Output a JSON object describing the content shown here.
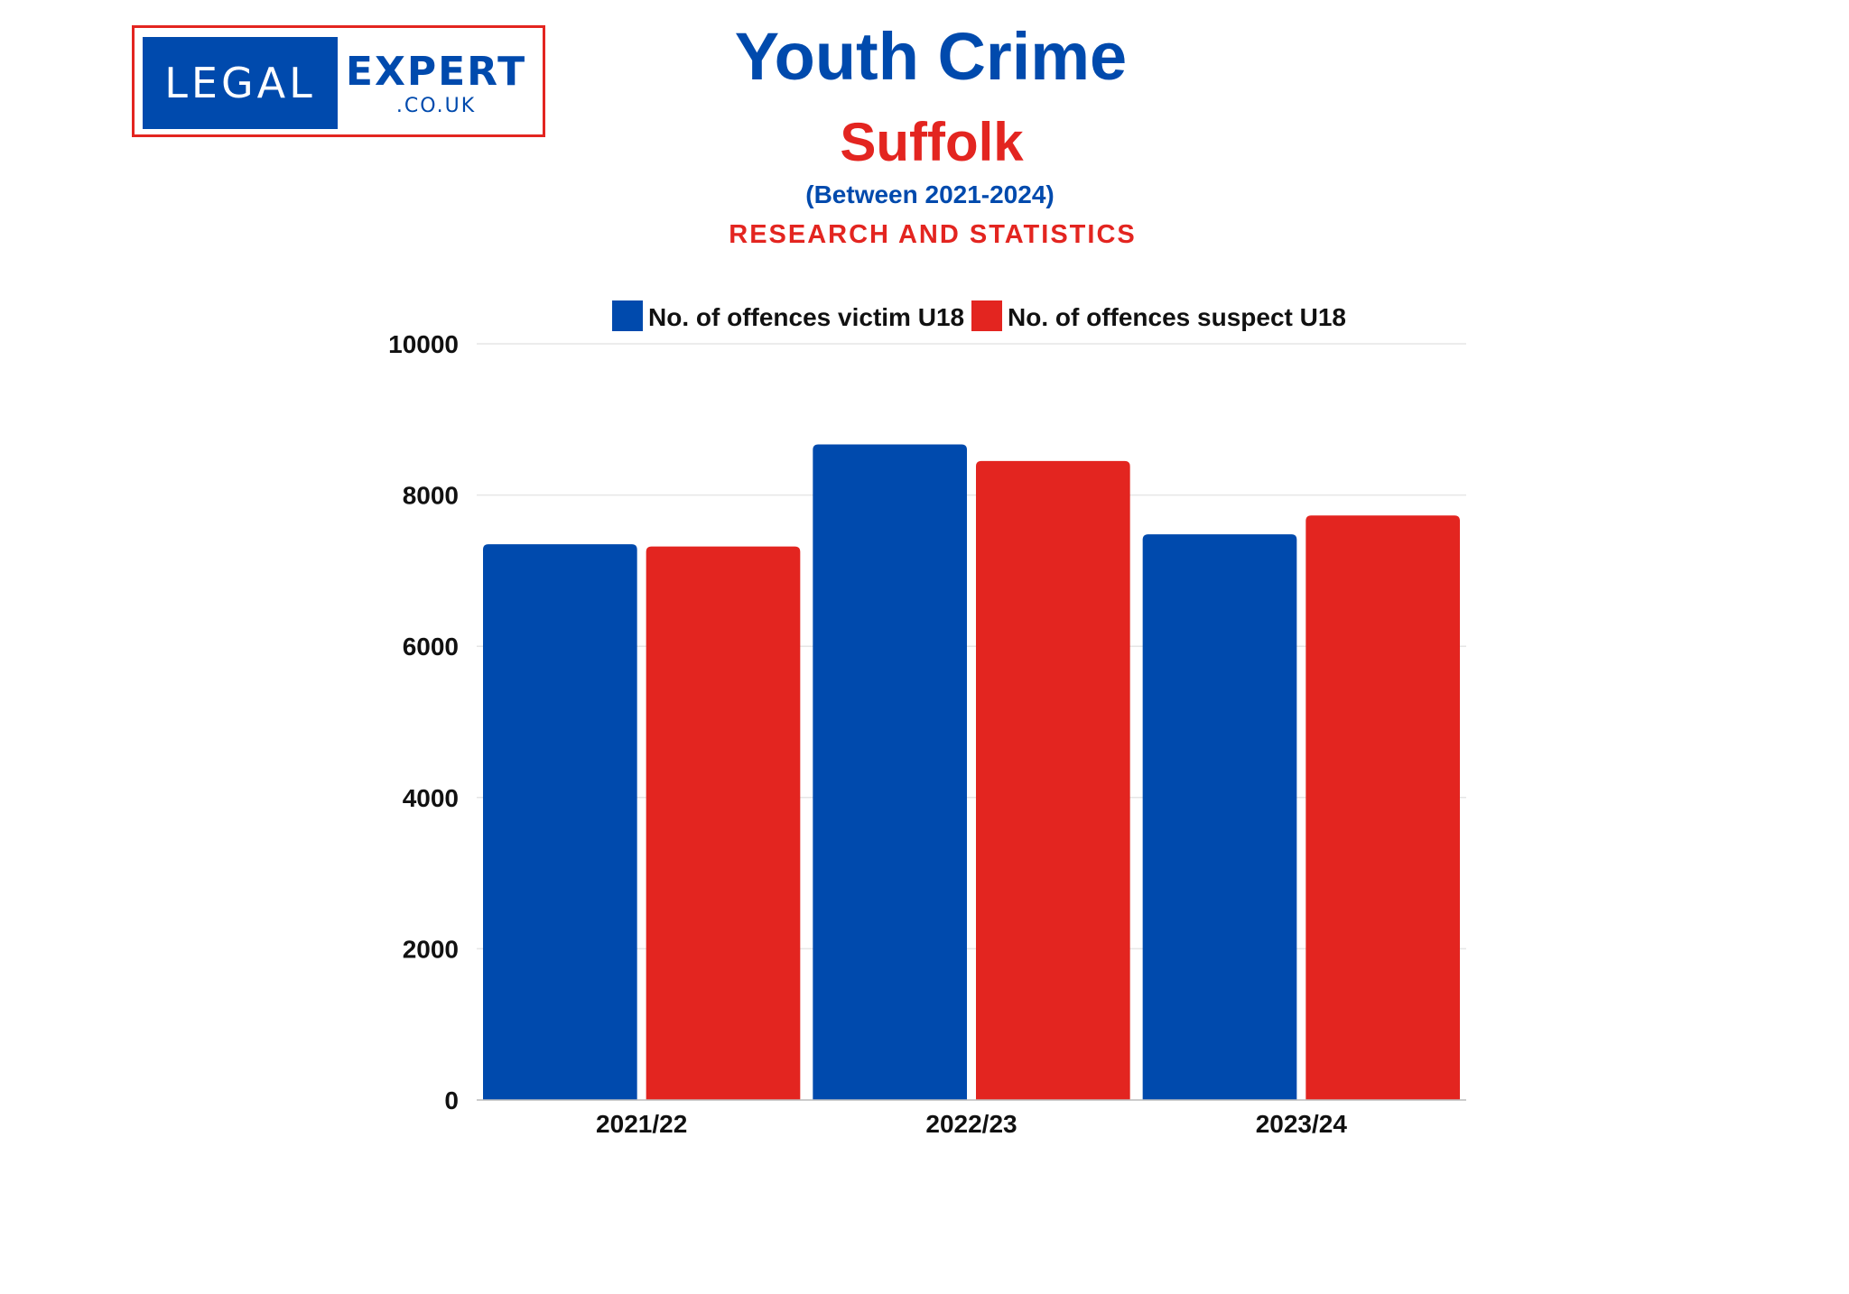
{
  "branding": {
    "logo_left_text": "LEGAL",
    "logo_right_text": "EXPERT",
    "logo_domain_text": ".CO.UK",
    "frame_color": "#e32520",
    "brand_blue": "#004aad"
  },
  "header": {
    "title": "Youth Crime",
    "region": "Suffolk",
    "period": "(Between 2021-2024)",
    "tagline": "RESEARCH AND STATISTICS"
  },
  "chart_data": {
    "type": "bar",
    "categories": [
      "2021/22",
      "2022/23",
      "2023/24"
    ],
    "series": [
      {
        "name": "No. of offences victim U18",
        "color": "#004aad",
        "values": [
          7350,
          8670,
          7480
        ]
      },
      {
        "name": "No. of offences suspect U18",
        "color": "#e32520",
        "values": [
          7320,
          8450,
          7730
        ]
      }
    ],
    "ylim": [
      0,
      10000
    ],
    "yticks": [
      0,
      2000,
      4000,
      6000,
      8000,
      10000
    ],
    "xlabel": "",
    "ylabel": "",
    "legend_position": "top-center",
    "grid": true
  }
}
